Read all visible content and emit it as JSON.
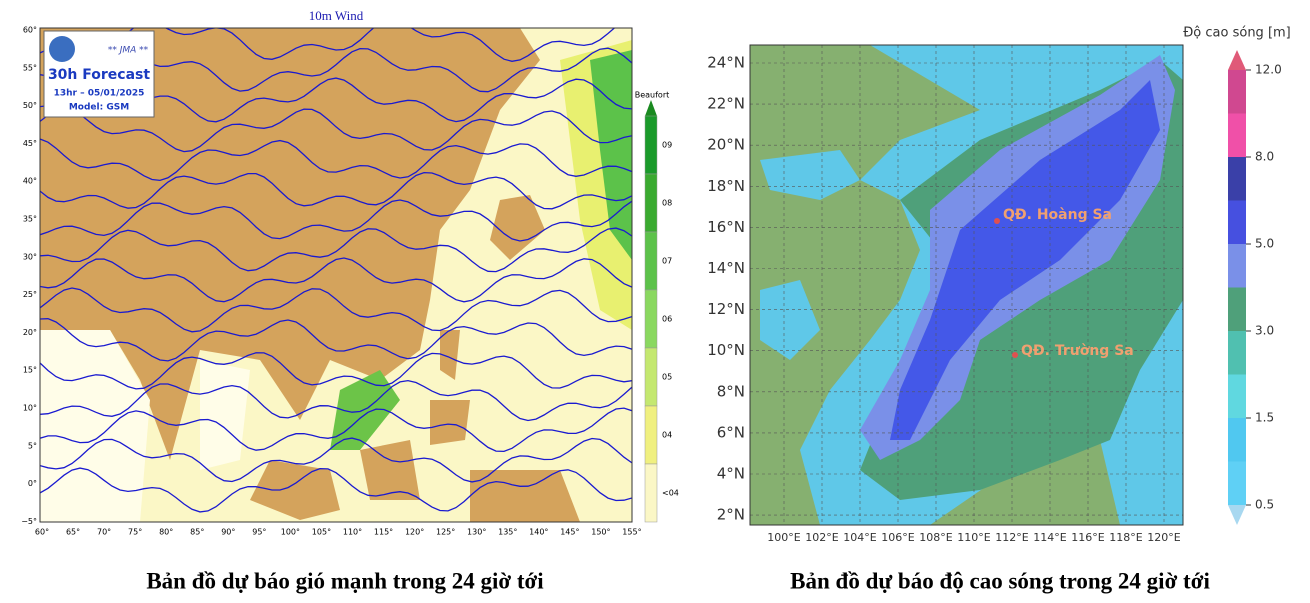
{
  "left_map": {
    "title": "10m Wind",
    "logo": {
      "agency": "** JMA **",
      "forecast": "30h Forecast",
      "time": "13hr – 05/01/2025",
      "model": "Model: GSM"
    },
    "lat_labels": [
      "60°",
      "55°",
      "50°",
      "45°",
      "40°",
      "35°",
      "30°",
      "25°",
      "20°",
      "15°",
      "10°",
      "5°",
      "0°",
      "−5°"
    ],
    "lon_labels": [
      "60°",
      "65°",
      "70°",
      "75°",
      "80°",
      "85°",
      "90°",
      "95°",
      "100°",
      "105°",
      "110°",
      "115°",
      "120°",
      "125°",
      "130°",
      "135°",
      "140°",
      "145°",
      "150°",
      "155°"
    ],
    "legend": {
      "title": "Beaufort",
      "labels": [
        "09",
        "08",
        "07",
        "06",
        "05",
        "04",
        "<04"
      ]
    },
    "caption": "Bản đồ dự báo gió mạnh trong 24 giờ tới"
  },
  "right_map": {
    "lat_labels": [
      "24°N",
      "22°N",
      "20°N",
      "18°N",
      "16°N",
      "14°N",
      "12°N",
      "10°N",
      "8°N",
      "6°N",
      "4°N",
      "2°N"
    ],
    "lon_labels": [
      "100°E",
      "102°E",
      "104°E",
      "106°E",
      "108°E",
      "110°E",
      "112°E",
      "114°E",
      "116°E",
      "118°E",
      "120°E"
    ],
    "places": [
      "QĐ. Hoàng Sa",
      "QĐ. Trường Sa"
    ],
    "legend": {
      "title": "Độ cao sóng [m]",
      "labels": [
        "12.0",
        "8.0",
        "5.0",
        "3.0",
        "1.5",
        "0.5"
      ]
    },
    "caption": "Bản đồ dự báo độ cao sóng trong 24 giờ tới"
  }
}
